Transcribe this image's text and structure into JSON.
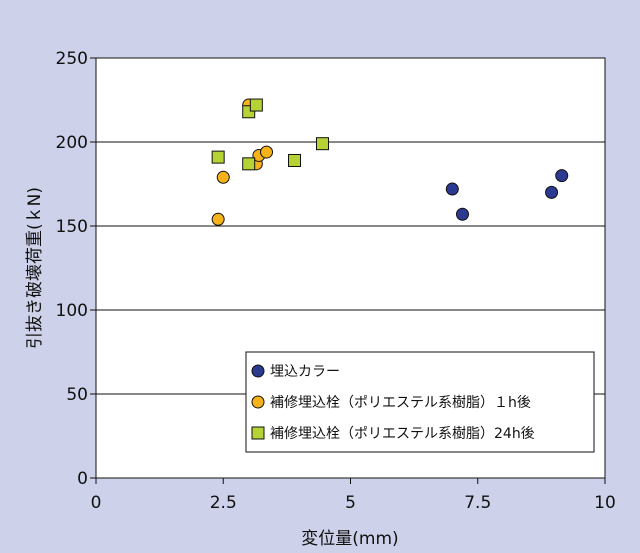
{
  "chart_data": {
    "type": "scatter",
    "xlabel": "変位量(mm)",
    "ylabel": "引抜き破壊荷重(ｋN)",
    "xlim": [
      0,
      10
    ],
    "ylim": [
      0,
      250
    ],
    "x_ticks": [
      0,
      2.5,
      5,
      7.5,
      10
    ],
    "x_tick_labels": [
      "0",
      "2.5",
      "5",
      "7.5",
      "10"
    ],
    "y_ticks": [
      0,
      50,
      100,
      150,
      200,
      250
    ],
    "y_tick_labels": [
      "0",
      "50",
      "100",
      "150",
      "200",
      "250"
    ],
    "grid": "horizontal",
    "legend_placement": "bottom-right",
    "series": [
      {
        "name": "埋込カラー",
        "marker": "circle",
        "color": "#2b3990",
        "points": [
          [
            7.0,
            172
          ],
          [
            7.2,
            157
          ],
          [
            8.95,
            170
          ],
          [
            9.15,
            180
          ]
        ]
      },
      {
        "name": "補修埋込栓（ポリエステル系樹脂）１h後",
        "marker": "circle",
        "color": "#f5b21b",
        "points": [
          [
            2.4,
            154
          ],
          [
            2.5,
            179
          ],
          [
            3.0,
            222
          ],
          [
            3.15,
            187
          ],
          [
            3.2,
            192
          ],
          [
            3.35,
            194
          ]
        ]
      },
      {
        "name": "補修埋込栓（ポリエステル系樹脂）24h後",
        "marker": "square",
        "color": "#b5d334",
        "points": [
          [
            2.4,
            191
          ],
          [
            3.0,
            187
          ],
          [
            3.0,
            218
          ],
          [
            3.15,
            222
          ],
          [
            3.9,
            189
          ],
          [
            4.45,
            199
          ]
        ]
      }
    ]
  }
}
